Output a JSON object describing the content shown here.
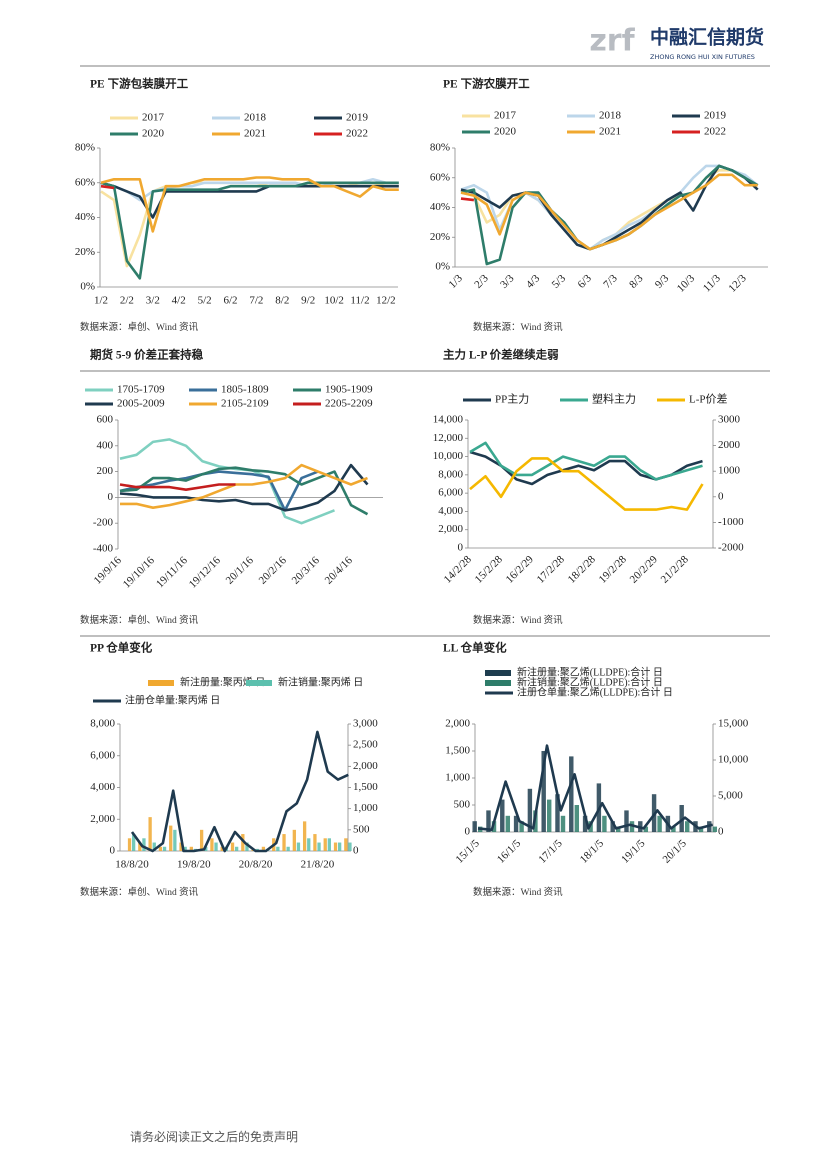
{
  "header": {
    "logo_mark": "zrf",
    "logo_name": "中融汇信期货",
    "logo_subtitle": "ZHONG RONG HUI XIN FUTURES"
  },
  "footer": {
    "disclaimer": "请务必阅读正文之后的免责声明"
  },
  "chart_data": [
    {
      "type": "line",
      "title": "PE 下游包装膜开工",
      "source": "数据来源：卓创、Wind 资讯",
      "categories": [
        "1/2",
        null,
        "2/2",
        null,
        "3/2",
        null,
        "4/2",
        null,
        "5/2",
        null,
        "6/2",
        null,
        "7/2",
        null,
        "8/2",
        null,
        "9/2",
        null,
        "10/2",
        null,
        "11/2",
        null,
        "12/2",
        null
      ],
      "ylim": [
        0,
        80
      ],
      "yticks": [
        {
          "value": 0,
          "label": "0%"
        },
        {
          "value": 20,
          "label": "20%"
        },
        {
          "value": 40,
          "label": "40%"
        },
        {
          "value": 60,
          "label": "60%"
        },
        {
          "value": 80,
          "label": "80%"
        }
      ],
      "series": [
        {
          "name": "2017",
          "color": "#f8e2a0",
          "values": [
            55,
            50,
            12,
            30,
            55,
            58,
            58,
            60,
            60,
            60,
            60,
            60,
            60,
            58,
            58,
            58,
            60,
            58,
            58,
            58,
            60,
            60,
            58,
            58
          ]
        },
        {
          "name": "2018",
          "color": "#bcd6ea",
          "values": [
            58,
            58,
            55,
            50,
            55,
            57,
            58,
            58,
            60,
            60,
            60,
            60,
            60,
            60,
            60,
            60,
            58,
            58,
            60,
            60,
            60,
            62,
            60,
            60
          ]
        },
        {
          "name": "2019",
          "color": "#1f3a4f",
          "values": [
            60,
            58,
            55,
            52,
            40,
            55,
            55,
            55,
            55,
            55,
            55,
            55,
            55,
            58,
            58,
            58,
            58,
            58,
            58,
            58,
            58,
            58,
            58,
            58
          ]
        },
        {
          "name": "2020",
          "color": "#2e7d6a",
          "values": [
            60,
            58,
            15,
            5,
            55,
            56,
            56,
            56,
            56,
            56,
            58,
            58,
            58,
            58,
            58,
            58,
            60,
            60,
            60,
            60,
            60,
            60,
            60,
            60
          ]
        },
        {
          "name": "2021",
          "color": "#f0a830",
          "values": [
            60,
            62,
            62,
            62,
            32,
            58,
            58,
            60,
            62,
            62,
            62,
            62,
            63,
            63,
            62,
            62,
            62,
            58,
            58,
            55,
            52,
            58,
            56,
            56
          ]
        },
        {
          "name": "2022",
          "color": "#d62020",
          "values": [
            58,
            57,
            null,
            null,
            null,
            null,
            null,
            null,
            null,
            null,
            null,
            null,
            null,
            null,
            null,
            null,
            null,
            null,
            null,
            null,
            null,
            null,
            null,
            null
          ]
        }
      ]
    },
    {
      "type": "line",
      "title": "PE 下游农膜开工",
      "source": "数据来源：Wind 资讯",
      "categories": [
        "1/3",
        null,
        "2/3",
        null,
        "3/3",
        null,
        "4/3",
        null,
        "5/3",
        null,
        "6/3",
        null,
        "7/3",
        null,
        "8/3",
        null,
        "9/3",
        null,
        "10/3",
        null,
        "11/3",
        null,
        "12/3",
        null
      ],
      "ylim": [
        0,
        80
      ],
      "yticks": [
        {
          "value": 0,
          "label": "0%"
        },
        {
          "value": 20,
          "label": "20%"
        },
        {
          "value": 40,
          "label": "40%"
        },
        {
          "value": 60,
          "label": "60%"
        },
        {
          "value": 80,
          "label": "80%"
        }
      ],
      "series": [
        {
          "name": "2017",
          "color": "#f8e2a0",
          "values": [
            50,
            48,
            30,
            35,
            48,
            50,
            45,
            35,
            25,
            15,
            12,
            18,
            22,
            30,
            35,
            40,
            45,
            48,
            50,
            60,
            65,
            65,
            60,
            55
          ]
        },
        {
          "name": "2018",
          "color": "#bcd6ea",
          "values": [
            52,
            55,
            50,
            25,
            45,
            50,
            45,
            35,
            25,
            15,
            12,
            18,
            22,
            28,
            32,
            38,
            45,
            50,
            60,
            68,
            68,
            65,
            62,
            55
          ]
        },
        {
          "name": "2019",
          "color": "#1f3a4f",
          "values": [
            52,
            50,
            45,
            40,
            48,
            50,
            48,
            35,
            25,
            15,
            12,
            15,
            20,
            25,
            30,
            38,
            45,
            50,
            38,
            55,
            68,
            65,
            60,
            52
          ]
        },
        {
          "name": "2020",
          "color": "#2e7d6a",
          "values": [
            50,
            52,
            2,
            5,
            40,
            50,
            50,
            38,
            30,
            18,
            12,
            15,
            18,
            22,
            28,
            35,
            42,
            48,
            50,
            60,
            68,
            65,
            60,
            55
          ]
        },
        {
          "name": "2021",
          "color": "#f0a830",
          "values": [
            50,
            48,
            42,
            22,
            45,
            50,
            48,
            38,
            28,
            18,
            12,
            15,
            18,
            22,
            28,
            35,
            40,
            45,
            50,
            55,
            62,
            62,
            55,
            55
          ]
        },
        {
          "name": "2022",
          "color": "#d62020",
          "values": [
            46,
            45,
            null,
            null,
            null,
            null,
            null,
            null,
            null,
            null,
            null,
            null,
            null,
            null,
            null,
            null,
            null,
            null,
            null,
            null,
            null,
            null,
            null,
            null
          ]
        }
      ]
    },
    {
      "type": "line",
      "title": "期货 5-9 价差正套持稳",
      "source": "数据来源：卓创、Wind 资讯",
      "categories": [
        "19/9/16",
        null,
        "19/10/16",
        null,
        "19/11/16",
        null,
        "19/12/16",
        null,
        "20/1/16",
        null,
        "20/2/16",
        null,
        "20/3/16",
        null,
        "20/4/16",
        null
      ],
      "ylim": [
        -400,
        600
      ],
      "yticks": [
        -400,
        -200,
        0,
        200,
        400,
        600
      ],
      "series": [
        {
          "name": "1705-1709",
          "color": "#7fd0c0",
          "values": [
            300,
            330,
            430,
            450,
            400,
            280,
            240,
            220,
            210,
            150,
            -150,
            -200,
            -150,
            -100,
            null,
            null
          ]
        },
        {
          "name": "1805-1809",
          "color": "#3a6f9a",
          "values": [
            50,
            80,
            100,
            130,
            150,
            180,
            200,
            190,
            180,
            160,
            -100,
            150,
            200,
            null,
            null,
            null
          ]
        },
        {
          "name": "1905-1909",
          "color": "#2e7d6a",
          "values": [
            50,
            60,
            150,
            150,
            130,
            180,
            220,
            230,
            210,
            200,
            180,
            100,
            150,
            200,
            -60,
            -130
          ]
        },
        {
          "name": "2005-2009",
          "color": "#1f3a4f",
          "values": [
            30,
            20,
            0,
            0,
            0,
            -20,
            -30,
            -20,
            -50,
            -50,
            -100,
            -80,
            -40,
            50,
            250,
            100
          ]
        },
        {
          "name": "2105-2109",
          "color": "#f0a830",
          "values": [
            -50,
            -50,
            -80,
            -60,
            -30,
            0,
            50,
            100,
            100,
            120,
            150,
            250,
            200,
            150,
            100,
            150
          ]
        },
        {
          "name": "2205-2209",
          "color": "#c41e1e",
          "values": [
            100,
            80,
            80,
            80,
            60,
            80,
            100,
            100,
            null,
            null,
            null,
            null,
            null,
            null,
            null,
            null
          ]
        }
      ]
    },
    {
      "type": "line",
      "title": "主力 L-P 价差继续走弱",
      "source": "数据来源：Wind 资讯",
      "categories": [
        "14/2/28",
        null,
        "15/2/28",
        null,
        "16/2/29",
        null,
        "17/2/28",
        null,
        "18/2/28",
        null,
        "19/2/28",
        null,
        "20/2/29",
        null,
        "21/2/28",
        null
      ],
      "ylim": [
        0,
        14000
      ],
      "yticks": [
        0,
        {
          "value": 2000,
          "label": "2,000"
        },
        {
          "value": 4000,
          "label": "4,000"
        },
        {
          "value": 6000,
          "label": "6,000"
        },
        {
          "value": 8000,
          "label": "8,000"
        },
        {
          "value": 10000,
          "label": "10,000"
        },
        {
          "value": 12000,
          "label": "12,000"
        },
        {
          "value": 14000,
          "label": "14,000"
        }
      ],
      "y2lim": [
        -2000,
        3000
      ],
      "y2ticks": [
        -2000,
        -1000,
        0,
        1000,
        2000,
        3000
      ],
      "series": [
        {
          "name": "PP主力",
          "color": "#1f3a4f",
          "values": [
            10500,
            10000,
            9000,
            7500,
            7000,
            8000,
            8500,
            9000,
            8500,
            9500,
            9500,
            8000,
            7500,
            8000,
            9000,
            9500
          ]
        },
        {
          "name": "塑料主力",
          "color": "#3aa890",
          "values": [
            10500,
            11500,
            9000,
            8000,
            8000,
            9000,
            10000,
            9500,
            9000,
            10000,
            10000,
            8500,
            7500,
            8000,
            8500,
            9000
          ]
        },
        {
          "name": "L-P价差",
          "color": "#f5b800",
          "axis": "y2",
          "values": [
            300,
            800,
            0,
            1000,
            1500,
            1500,
            1000,
            1000,
            500,
            0,
            -500,
            -500,
            -500,
            -400,
            -500,
            500
          ]
        }
      ]
    },
    {
      "type": "combo",
      "title": "PP 仓单变化",
      "source": "数据来源：卓创、Wind 资讯",
      "categories": [
        "18/8/20",
        null,
        null,
        null,
        null,
        null,
        "19/8/20",
        null,
        null,
        null,
        null,
        null,
        "20/8/20",
        null,
        null,
        null,
        null,
        null,
        "21/8/20",
        null,
        null,
        null
      ],
      "ylim": [
        0,
        8000
      ],
      "yticks": [
        0,
        {
          "value": 2000,
          "label": "2,000"
        },
        {
          "value": 4000,
          "label": "4,000"
        },
        {
          "value": 6000,
          "label": "6,000"
        },
        {
          "value": 8000,
          "label": "8,000"
        }
      ],
      "y2lim": [
        0,
        3000
      ],
      "y2ticks": [
        0,
        500,
        {
          "value": 1000,
          "label": "1,000"
        },
        {
          "value": 1500,
          "label": "1,500"
        },
        {
          "value": 2000,
          "label": "2,000"
        },
        {
          "value": 2500,
          "label": "2,500"
        },
        {
          "value": 3000,
          "label": "3,000"
        }
      ],
      "series": [
        {
          "name": "新注册量:聚丙烯 日",
          "type": "bar",
          "axis": "y2",
          "color": "#f0a830",
          "values": [
            300,
            200,
            800,
            100,
            600,
            200,
            100,
            500,
            300,
            100,
            200,
            400,
            50,
            100,
            300,
            400,
            500,
            700,
            400,
            300,
            200,
            300
          ]
        },
        {
          "name": "新注销量:聚丙烯 日",
          "type": "bar",
          "axis": "y2",
          "color": "#5cc0ae",
          "values": [
            400,
            300,
            200,
            100,
            500,
            100,
            50,
            100,
            200,
            100,
            100,
            200,
            50,
            50,
            100,
            100,
            200,
            300,
            200,
            300,
            200,
            200
          ]
        },
        {
          "name": "注册仓单量:聚丙烯 日",
          "color": "#1f3a4f",
          "values": [
            1200,
            300,
            0,
            500,
            3800,
            0,
            0,
            100,
            1500,
            0,
            1200,
            500,
            0,
            0,
            500,
            2500,
            3000,
            4500,
            7500,
            5000,
            4500,
            4800
          ]
        }
      ]
    },
    {
      "type": "combo",
      "title": "LL 仓单变化",
      "source": "数据来源：Wind 资讯",
      "categories": [
        "15/1/5",
        null,
        null,
        "16/1/5",
        null,
        null,
        "17/1/5",
        null,
        null,
        "18/1/5",
        null,
        null,
        "19/1/5",
        null,
        null,
        "20/1/5",
        null,
        null
      ],
      "ylim": [
        0,
        2000
      ],
      "yticks": [
        0,
        500,
        {
          "value": 1000,
          "label": "1,000"
        },
        {
          "value": 1500,
          "label": "1,500"
        },
        {
          "value": 2000,
          "label": "2,000"
        }
      ],
      "y2lim": [
        0,
        15000
      ],
      "y2ticks": [
        0,
        {
          "value": 5000,
          "label": "5,000"
        },
        {
          "value": 10000,
          "label": "10,000"
        },
        {
          "value": 15000,
          "label": "15,000"
        }
      ],
      "series": [
        {
          "name": "新注册量:聚乙烯(LLDPE):合计 日",
          "type": "bar",
          "color": "#1e3d4f",
          "values": [
            200,
            400,
            600,
            300,
            800,
            1500,
            700,
            1400,
            300,
            900,
            200,
            400,
            200,
            700,
            300,
            500,
            200,
            200
          ]
        },
        {
          "name": "新注销量:聚乙烯(LLDPE):合计 日",
          "type": "bar",
          "color": "#2e7d6a",
          "values": [
            100,
            200,
            300,
            200,
            400,
            600,
            300,
            500,
            200,
            300,
            100,
            200,
            100,
            300,
            100,
            200,
            100,
            100
          ]
        },
        {
          "name": "注册仓单量:聚乙烯(LLDPE):合计 日",
          "axis": "y2",
          "color": "#1f3a4f",
          "values": [
            500,
            300,
            7000,
            1500,
            500,
            12000,
            3000,
            8000,
            500,
            4000,
            500,
            1000,
            500,
            3000,
            500,
            2000,
            500,
            1000
          ]
        }
      ]
    }
  ]
}
